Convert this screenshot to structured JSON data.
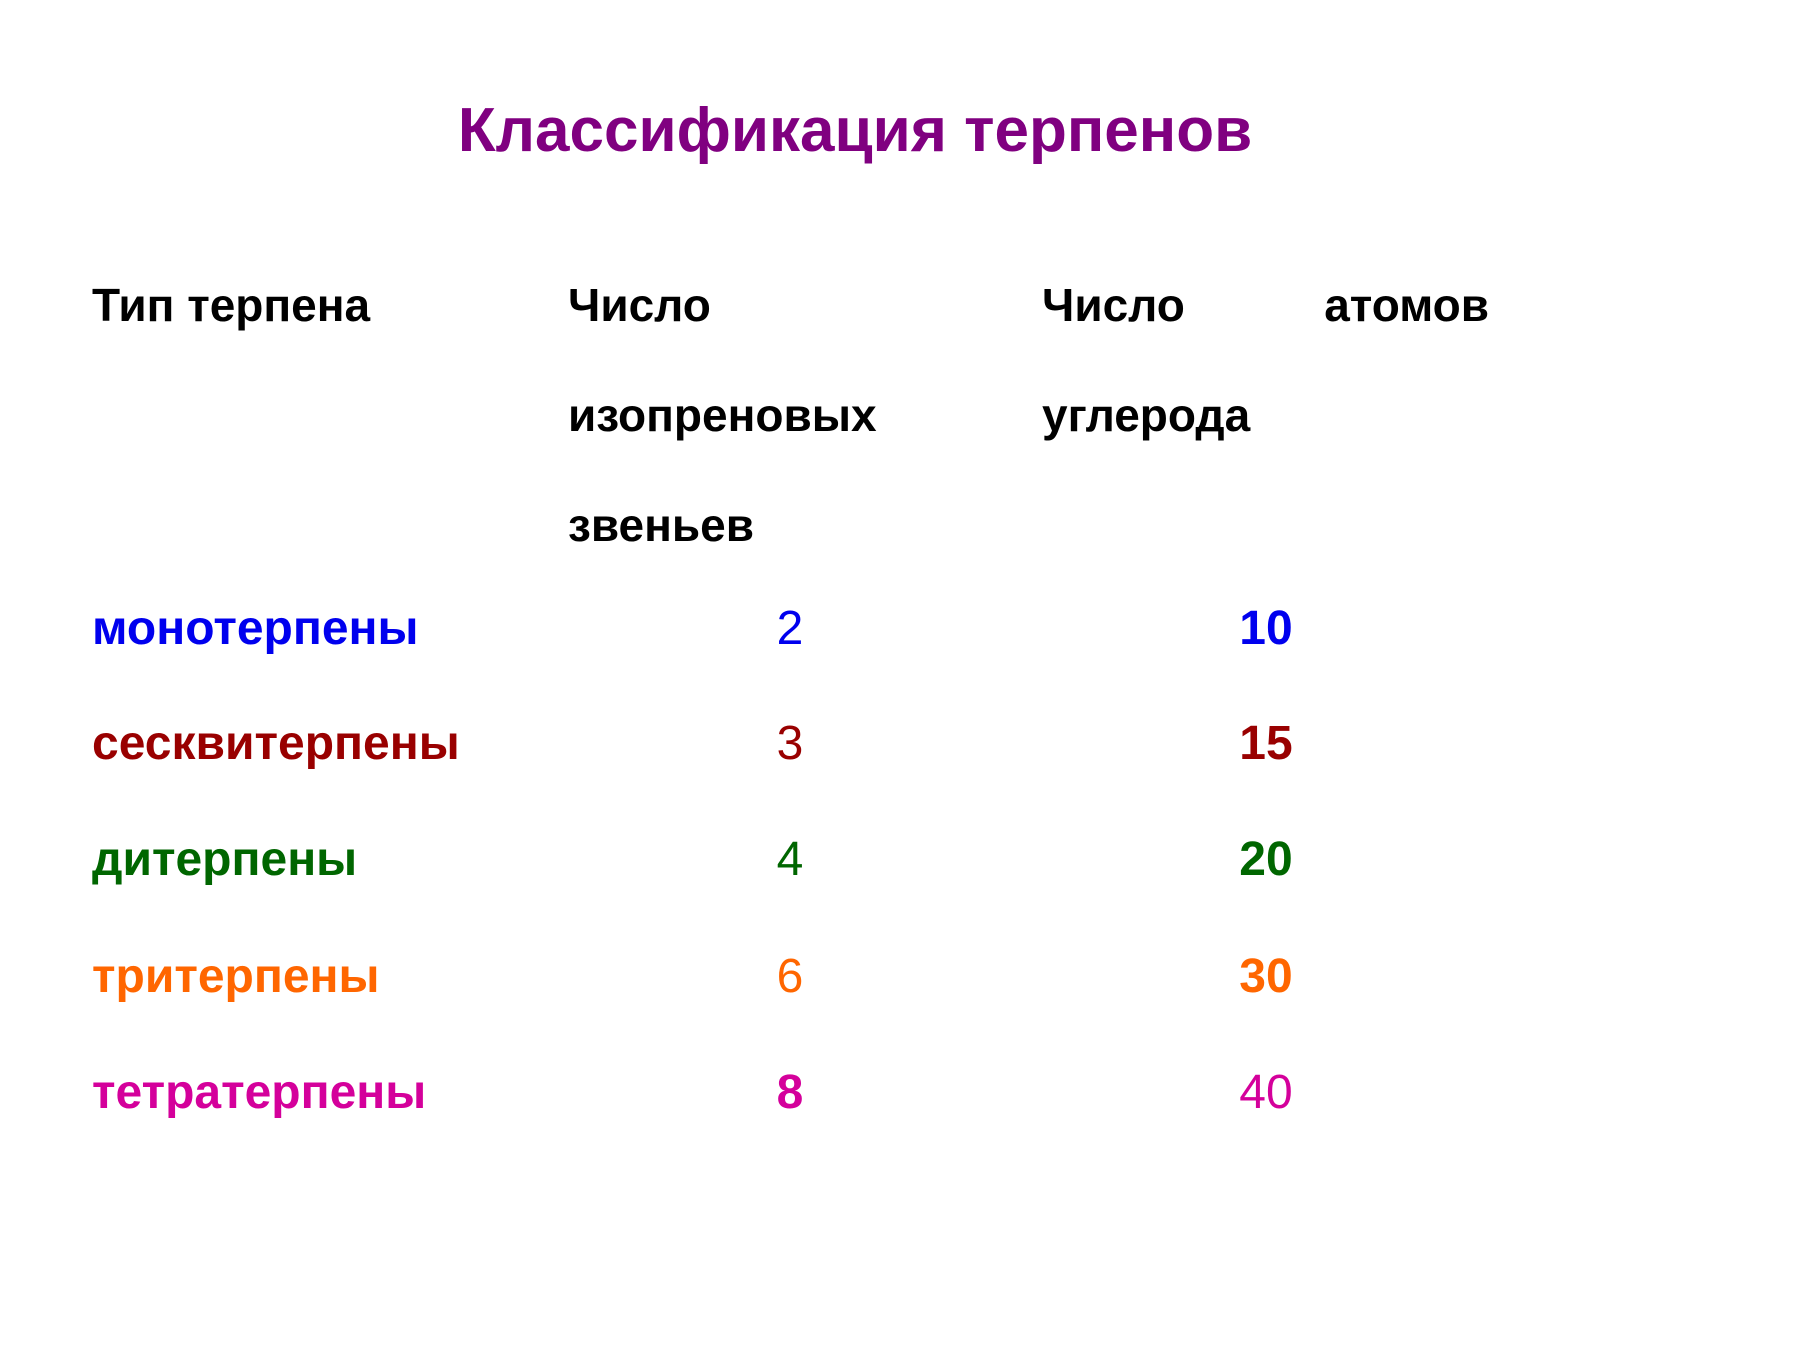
{
  "title": "Классификация терпенов",
  "table": {
    "header": [
      "Тип терпена",
      "Число изопреновых звеньев",
      "Число атомов углерода"
    ],
    "rows": [
      [
        "монотерпены",
        2,
        10
      ],
      [
        "сесквитерпены",
        3,
        15
      ],
      [
        "дитерпены",
        4,
        20
      ],
      [
        "тритерпены",
        6,
        30
      ],
      [
        "тетратерпены",
        8,
        40
      ]
    ]
  }
}
